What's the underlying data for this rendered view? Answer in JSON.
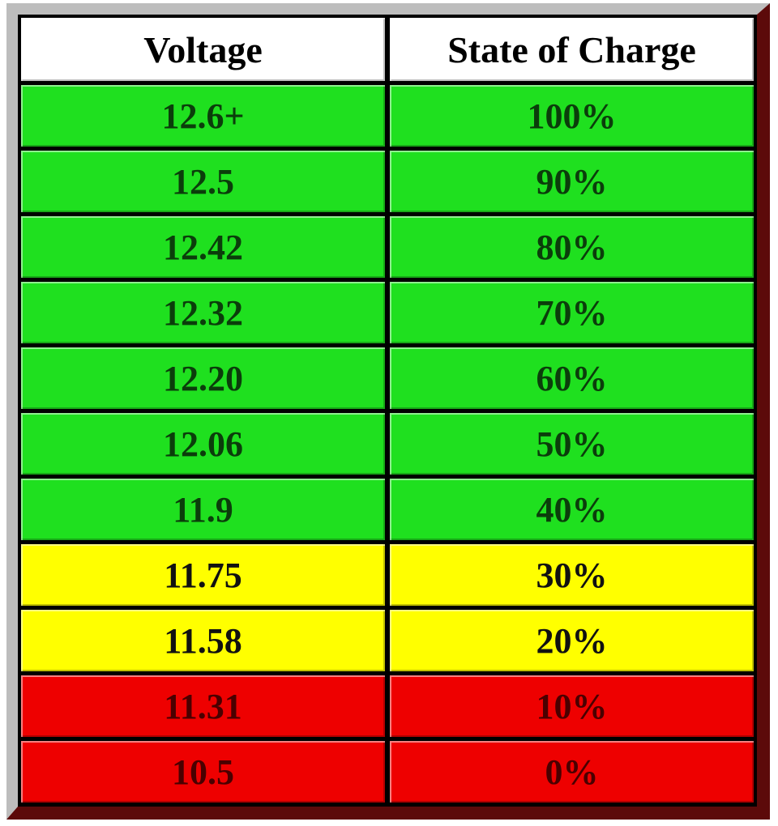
{
  "table": {
    "header": [
      "Voltage",
      "State of Charge"
    ],
    "rows": [
      {
        "cells": [
          "12.6+",
          "100%"
        ],
        "color": "#1fe01f",
        "text_color": "#0b3d0b"
      },
      {
        "cells": [
          "12.5",
          "90%"
        ],
        "color": "#1fe01f",
        "text_color": "#0b3d0b"
      },
      {
        "cells": [
          "12.42",
          "80%"
        ],
        "color": "#1fe01f",
        "text_color": "#0b3d0b"
      },
      {
        "cells": [
          "12.32",
          "70%"
        ],
        "color": "#1fe01f",
        "text_color": "#0b3d0b"
      },
      {
        "cells": [
          "12.20",
          "60%"
        ],
        "color": "#1fe01f",
        "text_color": "#0b3d0b"
      },
      {
        "cells": [
          "12.06",
          "50%"
        ],
        "color": "#1fe01f",
        "text_color": "#0b3d0b"
      },
      {
        "cells": [
          "11.9",
          "40%"
        ],
        "color": "#1fe01f",
        "text_color": "#0b3d0b"
      },
      {
        "cells": [
          "11.75",
          "30%"
        ],
        "color": "#ffff00",
        "text_color": "#111111"
      },
      {
        "cells": [
          "11.58",
          "20%"
        ],
        "color": "#ffff00",
        "text_color": "#111111"
      },
      {
        "cells": [
          "11.31",
          "10%"
        ],
        "color": "#ee0000",
        "text_color": "#4a0000"
      },
      {
        "cells": [
          "10.5",
          "0%"
        ],
        "color": "#ee0000",
        "text_color": "#4a0000"
      }
    ]
  }
}
